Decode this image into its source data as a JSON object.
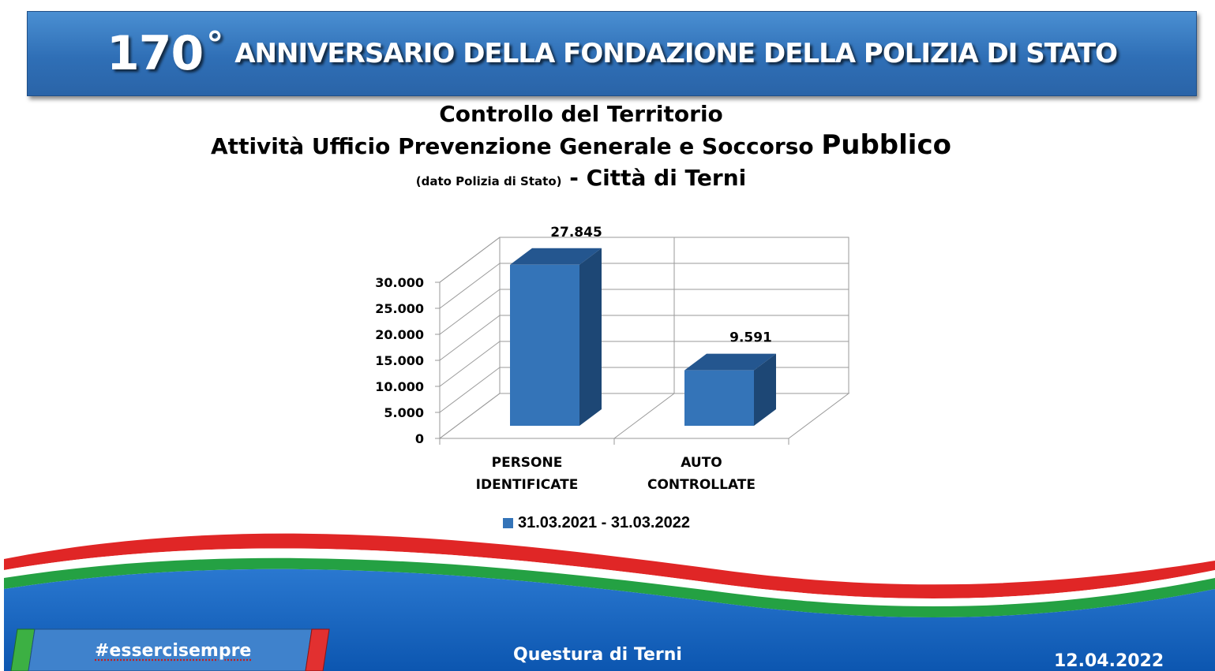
{
  "banner": {
    "number": "170",
    "degree": "°",
    "text": "ANNIVERSARIO DELLA FONDAZIONE DELLA POLIZIA DI STATO"
  },
  "heading": {
    "line1": "Controllo del Territorio",
    "line2_main": "Attività Ufficio Prevenzione Generale e Soccorso",
    "line2_big": "Pubblico",
    "line3_small": "(dato Polizia di Stato)",
    "line3_main": "- Città di Terni"
  },
  "chart_data": {
    "type": "bar",
    "title": "",
    "xlabel": "",
    "ylabel": "",
    "categories": [
      [
        "PERSONE",
        "IDENTIFICATE"
      ],
      [
        "AUTO",
        "CONTROLLATE"
      ]
    ],
    "series": [
      {
        "name": "31.03.2021 - 31.03.2022",
        "values": [
          27845,
          9591
        ],
        "labels": [
          "27.845",
          "9.591"
        ]
      }
    ],
    "ylim": [
      0,
      30000
    ],
    "ticks": [
      0,
      5000,
      10000,
      15000,
      20000,
      25000,
      30000
    ],
    "tick_labels": [
      "0",
      "5.000",
      "10.000",
      "15.000",
      "20.000",
      "25.000",
      "30.000"
    ],
    "grid": true,
    "style": "3d",
    "legend_position": "bottom",
    "colors": {
      "front": "#3474b8",
      "top": "#24568f",
      "side": "#1d4775"
    }
  },
  "footer": {
    "hashtag": "#essercisempre",
    "questura": "Questura di Terni",
    "date": "12.04.2022",
    "colors": {
      "blue": "#1565c0",
      "red": "#e02020",
      "green": "#22a040"
    }
  }
}
